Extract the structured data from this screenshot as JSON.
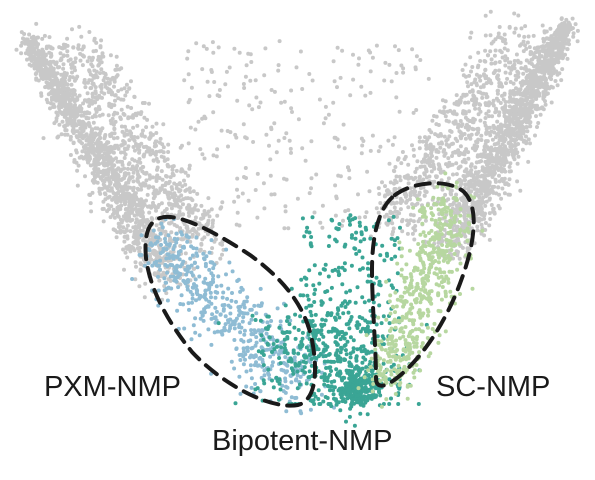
{
  "chart_data": {
    "type": "scatter",
    "title": "",
    "xlabel": "",
    "ylabel": "",
    "grid": false,
    "legend": "none",
    "series": [
      {
        "name": "",
        "key": "background",
        "color": "#c8c8c8"
      },
      {
        "name": "",
        "key": "pxm",
        "color": "#8fbcd4"
      },
      {
        "name": "",
        "key": "bipotent",
        "color": "#3aa595"
      },
      {
        "name": "",
        "key": "sc",
        "color": "#b7d7a0"
      }
    ],
    "regions": [
      {
        "key": "pxm",
        "label": "PXM-NMP"
      },
      {
        "key": "bipotent",
        "label": "Bipotent-NMP"
      },
      {
        "key": "sc",
        "label": "SC-NMP"
      }
    ],
    "outline": {
      "style": "dashed",
      "color": "#1a1a1a"
    }
  }
}
